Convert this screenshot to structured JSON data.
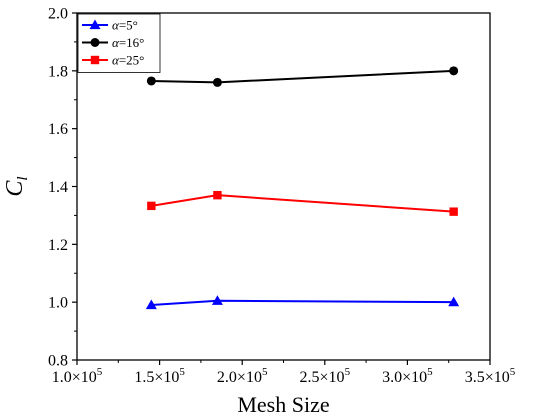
{
  "chart_data": {
    "type": "line",
    "xlabel": "Mesh Size",
    "ylabel": "C",
    "ylabel_sub": "l",
    "xlim": [
      100000,
      350000
    ],
    "ylim": [
      0.8,
      2.0
    ],
    "x_ticks": [
      {
        "value": 100000,
        "mantissa": "1.0",
        "base": "×10",
        "exp": "5"
      },
      {
        "value": 150000,
        "mantissa": "1.5",
        "base": "×10",
        "exp": "5"
      },
      {
        "value": 200000,
        "mantissa": "2.0",
        "base": "×10",
        "exp": "5"
      },
      {
        "value": 250000,
        "mantissa": "2.5",
        "base": "×10",
        "exp": "5"
      },
      {
        "value": 300000,
        "mantissa": "3.0",
        "base": "×10",
        "exp": "5"
      },
      {
        "value": 350000,
        "mantissa": "3.5",
        "base": "×10",
        "exp": "5"
      }
    ],
    "y_ticks": [
      {
        "value": 0.8,
        "label": "0.8"
      },
      {
        "value": 1.0,
        "label": "1.0"
      },
      {
        "value": 1.2,
        "label": "1.2"
      },
      {
        "value": 1.4,
        "label": "1.4"
      },
      {
        "value": 1.6,
        "label": "1.6"
      },
      {
        "value": 1.8,
        "label": "1.8"
      },
      {
        "value": 2.0,
        "label": "2.0"
      }
    ],
    "legend_position": "top-left",
    "grid": false,
    "series": [
      {
        "name": "α=5°",
        "greek": "α",
        "rest": "=5°",
        "color": "#0000ff",
        "marker": "triangle",
        "x": [
          145000,
          185000,
          328000
        ],
        "y": [
          0.99,
          1.005,
          1.0
        ]
      },
      {
        "name": "α=16°",
        "greek": "α",
        "rest": "=16°",
        "color": "#000000",
        "marker": "circle",
        "x": [
          145000,
          185000,
          328000
        ],
        "y": [
          1.765,
          1.76,
          1.8
        ]
      },
      {
        "name": "α=25°",
        "greek": "α",
        "rest": "=25°",
        "color": "#ff0000",
        "marker": "square",
        "x": [
          145000,
          185000,
          328000
        ],
        "y": [
          1.333,
          1.37,
          1.313
        ]
      }
    ]
  }
}
